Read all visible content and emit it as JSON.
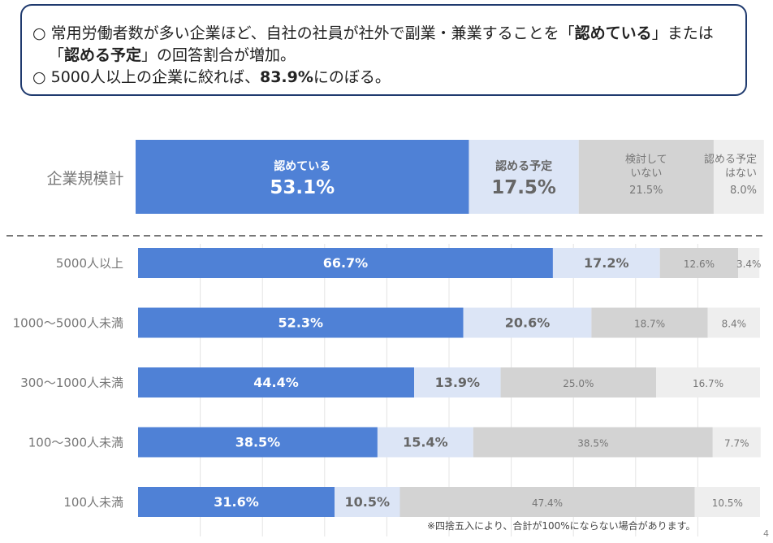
{
  "summary": {
    "line1_a": "○ 常用労働者数が多い企業ほど、自社の社員が社外で副業・兼業することを「",
    "line1_b": "認めている",
    "line1_c": "」または",
    "line2_a": "「",
    "line2_b": "認める予定",
    "line2_c": "」の回答割合が増加。",
    "line3_a": "○ 5000人以上の企業に絞れば、",
    "line3_b": "83.9%",
    "line3_c": "にのぼる。"
  },
  "chart_data": {
    "type": "bar",
    "orientation": "horizontal",
    "stacked": true,
    "xlim": [
      0,
      100
    ],
    "grid": true,
    "colors": [
      "#4f81d6",
      "#dce5f6",
      "#d3d3d3",
      "#eeeeee"
    ],
    "total": {
      "label": "企業規模計",
      "segments": [
        {
          "name": "認めている",
          "value": 53.1,
          "label": "53.1%"
        },
        {
          "name": "認める予定",
          "value": 17.5,
          "label": "17.5%"
        },
        {
          "name": "検討して\nいない",
          "value": 21.5,
          "label": "21.5%"
        },
        {
          "name": "認める予定\nはない",
          "value": 8.0,
          "label": "8.0%"
        }
      ]
    },
    "categories": [
      "5000人以上",
      "1000～5000人未満",
      "300～1000人未満",
      "100～300人未満",
      "100人未満"
    ],
    "series": [
      {
        "name": "認めている",
        "values": [
          66.7,
          52.3,
          44.4,
          38.5,
          31.6
        ]
      },
      {
        "name": "認める予定",
        "values": [
          17.2,
          20.6,
          13.9,
          15.4,
          10.5
        ]
      },
      {
        "name": "検討していない",
        "values": [
          12.6,
          18.7,
          25.0,
          38.5,
          47.4
        ]
      },
      {
        "name": "認める予定はない",
        "values": [
          3.4,
          8.4,
          16.7,
          7.7,
          10.5
        ]
      }
    ]
  },
  "footnote": "※四捨五入により、合計が100%にならない場合があります。",
  "page_number": "4"
}
